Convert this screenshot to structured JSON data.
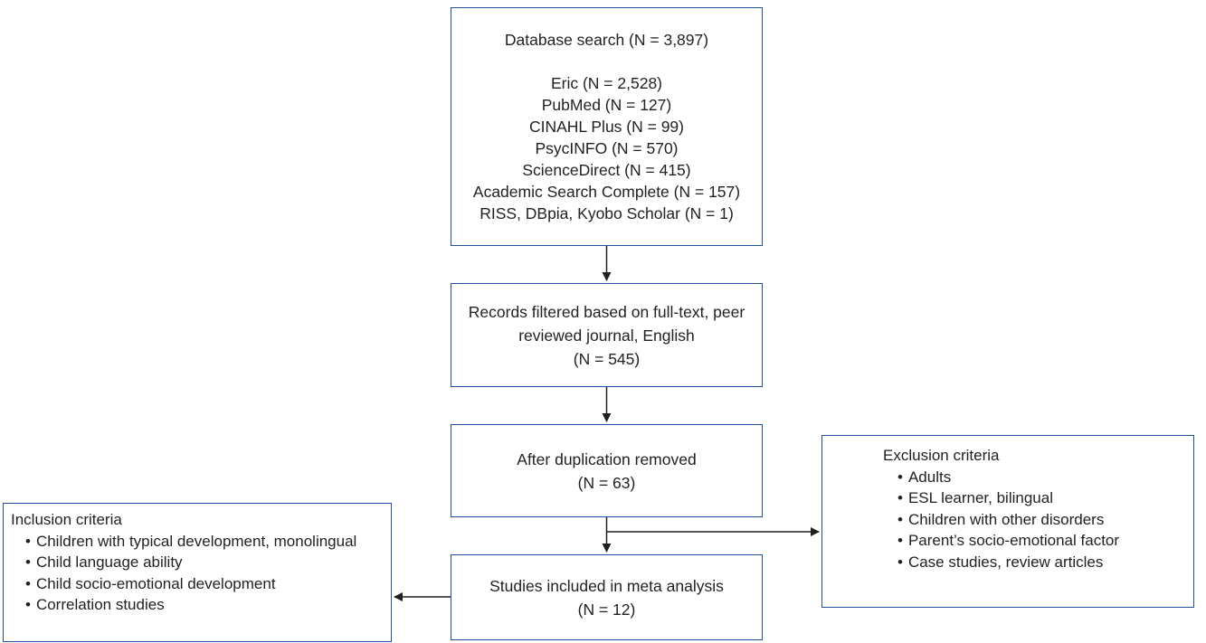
{
  "search": {
    "title": "Database search (N = 3,897)",
    "sources": [
      "Eric (N = 2,528)",
      "PubMed (N = 127)",
      "CINAHL Plus (N = 99)",
      "PsycINFO (N = 570)",
      "ScienceDirect (N = 415)",
      "Academic Search Complete (N = 157)",
      "RISS, DBpia, Kyobo Scholar (N = 1)"
    ]
  },
  "filtered": {
    "line1": "Records filtered based on full-text, peer",
    "line2": "reviewed journal, English",
    "count": "(N = 545)"
  },
  "duplication": {
    "label": "After duplication removed",
    "count": "(N = 63)"
  },
  "included": {
    "label": "Studies included in meta analysis",
    "count": "(N = 12)"
  },
  "exclusion": {
    "heading": "Exclusion criteria",
    "items": [
      "Adults",
      "ESL learner, bilingual",
      "Children with other disorders",
      "Parent’s socio-emotional factor",
      "Case studies, review articles"
    ]
  },
  "inclusion": {
    "heading": "Inclusion criteria",
    "items": [
      "Children with typical development, monolingual",
      "Child language ability",
      "Child socio-emotional development",
      "Correlation studies"
    ]
  },
  "colors": {
    "box_border": "#1f4e9c",
    "arrow": "#231f20",
    "text": "#231f20"
  }
}
